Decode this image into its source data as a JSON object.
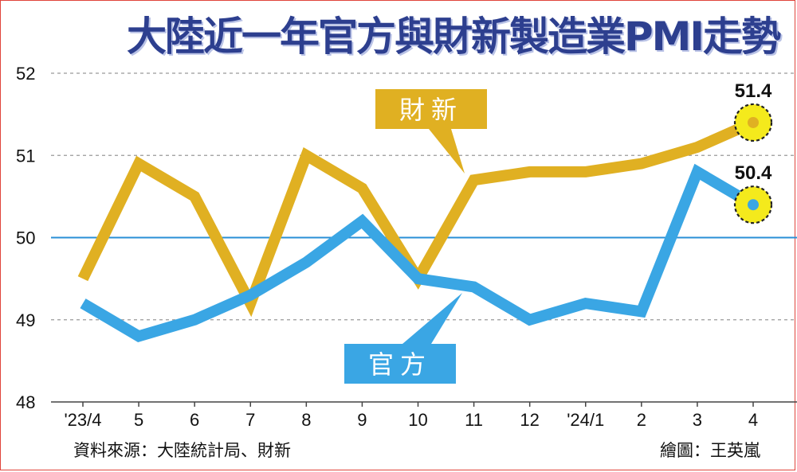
{
  "title": "大陸近一年官方與財新製造業PMI走勢",
  "source": "資料來源：大陸統計局、財新",
  "credit": "繪圖：王英嵐",
  "chart_data": {
    "type": "line",
    "categories": [
      "'23/4",
      "5",
      "6",
      "7",
      "8",
      "9",
      "10",
      "11",
      "12",
      "'24/1",
      "2",
      "3",
      "4"
    ],
    "ylim": [
      48,
      52
    ],
    "yticks": [
      "48",
      "49",
      "50",
      "51",
      "52"
    ],
    "grid": "horizontal dashed",
    "series": [
      {
        "name": "財新",
        "color": "#e0b022",
        "values": [
          49.5,
          50.9,
          50.5,
          49.2,
          51.0,
          50.6,
          49.5,
          50.7,
          50.8,
          50.8,
          50.9,
          51.1,
          51.4
        ]
      },
      {
        "name": "官方",
        "color": "#3aa6e4",
        "values": [
          49.2,
          48.8,
          49.0,
          49.3,
          49.7,
          50.2,
          49.5,
          49.4,
          49.0,
          49.2,
          49.1,
          50.8,
          50.4
        ]
      }
    ],
    "end_labels": [
      "51.4",
      "50.4"
    ],
    "reference_line": 50,
    "reference_color": "#2a8fd6",
    "highlight_color": "#f4ea1c"
  }
}
